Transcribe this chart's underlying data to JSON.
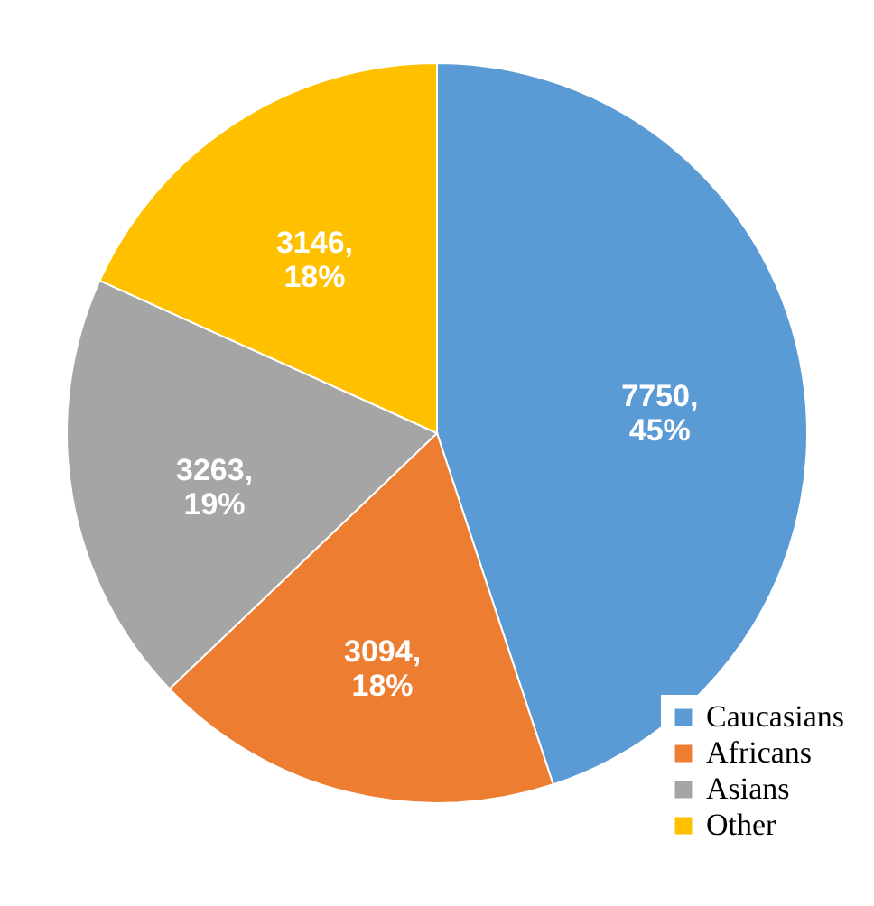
{
  "chart_data": {
    "type": "pie",
    "categories": [
      "Caucasians",
      "Africans",
      "Asians",
      "Other"
    ],
    "values": [
      7750,
      3094,
      3263,
      3146
    ],
    "colors": [
      "#5b9bd5",
      "#ed7d31",
      "#a5a5a5",
      "#ffc000"
    ],
    "value_labels": [
      "7750, 45%",
      "3094, 18%",
      "3263, 19%",
      "3146, 18%"
    ],
    "legend": "bottom right"
  }
}
